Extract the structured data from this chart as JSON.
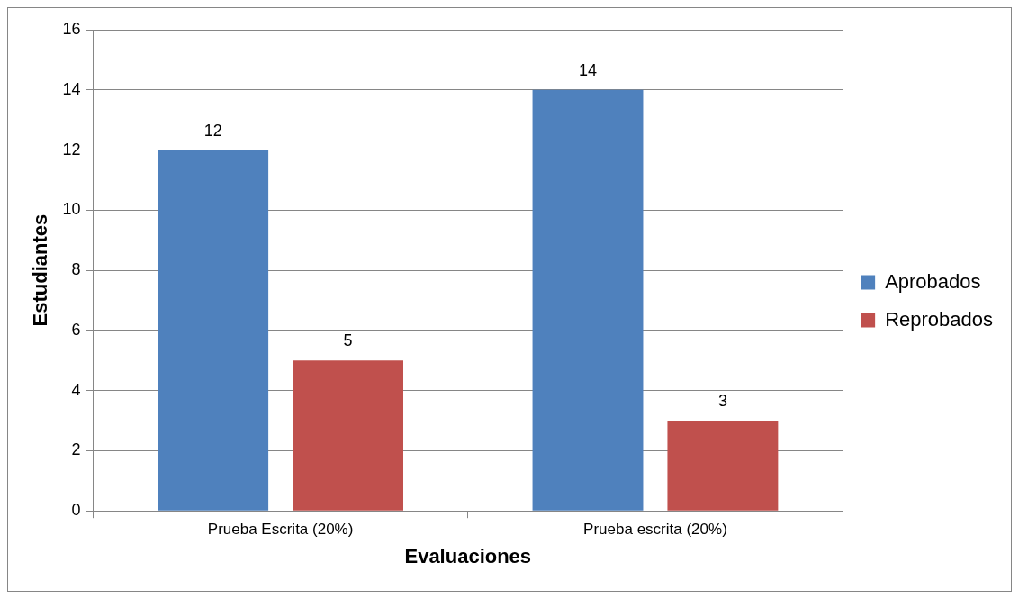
{
  "chart_data": {
    "type": "bar",
    "xlabel": "Evaluaciones",
    "ylabel": "Estudiantes",
    "categories": [
      "Prueba Escrita (20%)",
      "Prueba escrita (20%)"
    ],
    "series": [
      {
        "name": "Aprobados",
        "color": "#4f81bd",
        "values": [
          12,
          14
        ]
      },
      {
        "name": "Reprobados",
        "color": "#c0504d",
        "values": [
          5,
          3
        ]
      }
    ],
    "ylim": [
      0,
      16
    ],
    "yticks": [
      0,
      2,
      4,
      6,
      8,
      10,
      12,
      14,
      16
    ],
    "grid": "y",
    "legend": "right",
    "data_labels": true
  }
}
